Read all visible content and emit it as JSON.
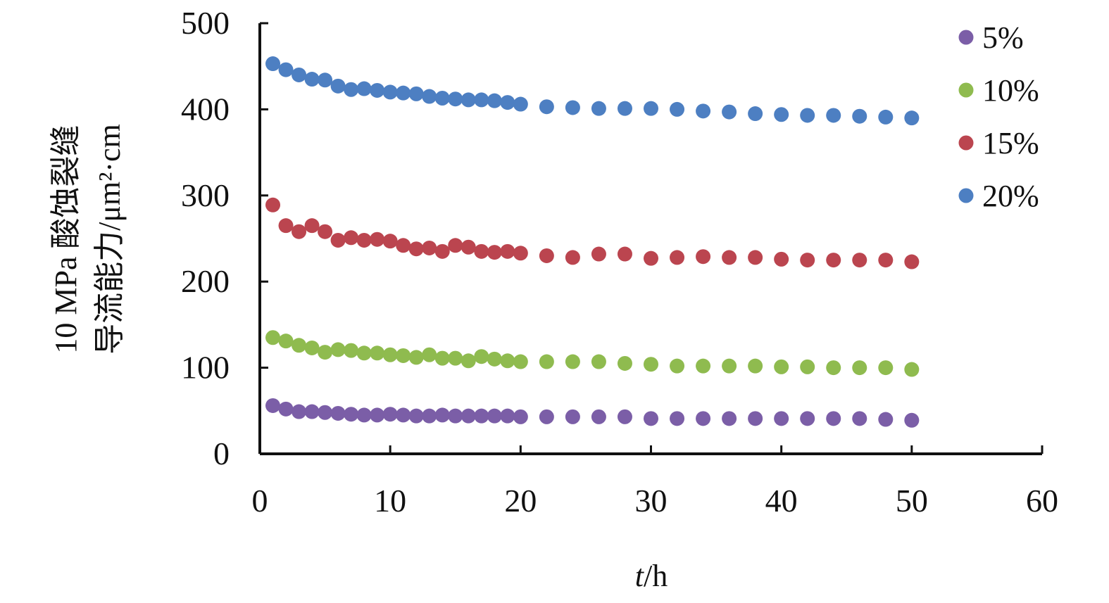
{
  "chart_data": {
    "type": "scatter",
    "ylabel_line1": "10 MPa 酸蚀裂缝",
    "ylabel_line2": "导流能力/μm²·cm",
    "xlabel_italic": "t",
    "xlabel_rest": "/h",
    "xlim": [
      0,
      60
    ],
    "ylim": [
      0,
      500
    ],
    "xticks": [
      0,
      10,
      20,
      30,
      40,
      50,
      60
    ],
    "yticks": [
      0,
      100,
      200,
      300,
      400,
      500
    ],
    "grid": false,
    "legend_position": "top-right",
    "x": [
      1,
      2,
      3,
      4,
      5,
      6,
      7,
      8,
      9,
      10,
      11,
      12,
      13,
      14,
      15,
      16,
      17,
      18,
      19,
      20,
      22,
      24,
      26,
      28,
      30,
      32,
      34,
      36,
      38,
      40,
      42,
      44,
      46,
      48,
      50
    ],
    "series": [
      {
        "name": "5%",
        "color": "#7b5ea7",
        "values": [
          56,
          52,
          49,
          49,
          48,
          47,
          46,
          45,
          45,
          46,
          45,
          44,
          44,
          45,
          44,
          44,
          44,
          44,
          44,
          43,
          43,
          43,
          43,
          43,
          41,
          41,
          41,
          41,
          41,
          41,
          41,
          41,
          41,
          40,
          39
        ]
      },
      {
        "name": "10%",
        "color": "#8fbb4f",
        "values": [
          135,
          131,
          126,
          123,
          118,
          121,
          120,
          117,
          117,
          115,
          114,
          112,
          115,
          111,
          111,
          108,
          113,
          110,
          108,
          107,
          107,
          107,
          107,
          105,
          104,
          102,
          102,
          102,
          102,
          101,
          101,
          100,
          100,
          100,
          98
        ]
      },
      {
        "name": "15%",
        "color": "#bb454f",
        "values": [
          289,
          265,
          258,
          265,
          258,
          248,
          251,
          248,
          249,
          247,
          242,
          238,
          239,
          235,
          242,
          240,
          235,
          234,
          235,
          233,
          230,
          228,
          232,
          232,
          227,
          228,
          229,
          228,
          228,
          226,
          225,
          225,
          225,
          225,
          223
        ]
      },
      {
        "name": "20%",
        "color": "#4d7fc2",
        "values": [
          453,
          446,
          440,
          435,
          434,
          427,
          423,
          424,
          422,
          420,
          419,
          418,
          415,
          413,
          412,
          411,
          411,
          410,
          408,
          406,
          403,
          402,
          401,
          401,
          401,
          400,
          398,
          397,
          395,
          394,
          393,
          393,
          392,
          391,
          390
        ]
      }
    ]
  }
}
